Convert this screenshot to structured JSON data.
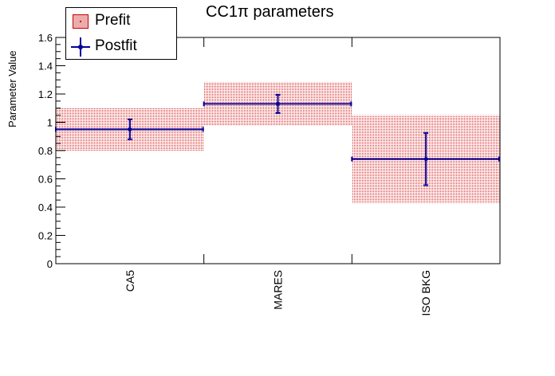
{
  "chart_data": {
    "type": "bar",
    "title": "CC1π parameters",
    "xlabel": "",
    "ylabel": "Parameter Value",
    "ylim": [
      0,
      1.6
    ],
    "yticks": [
      "0",
      "0.2",
      "0.4",
      "0.6",
      "0.8",
      "1",
      "1.2",
      "1.4",
      "1.6"
    ],
    "grid": false,
    "legend_position": "top-left",
    "categories": [
      "CA5",
      "MARES",
      "ISO BKG"
    ],
    "series": [
      {
        "name": "Prefit",
        "style": "error-band",
        "color": "#cc0000",
        "values": [
          0.95,
          1.13,
          0.74
        ],
        "errors": [
          0.15,
          0.155,
          0.31
        ]
      },
      {
        "name": "Postfit",
        "style": "point-errorbar",
        "color": "#000099",
        "values": [
          0.95,
          1.13,
          0.74
        ],
        "errors": [
          0.07,
          0.065,
          0.185
        ]
      }
    ]
  }
}
